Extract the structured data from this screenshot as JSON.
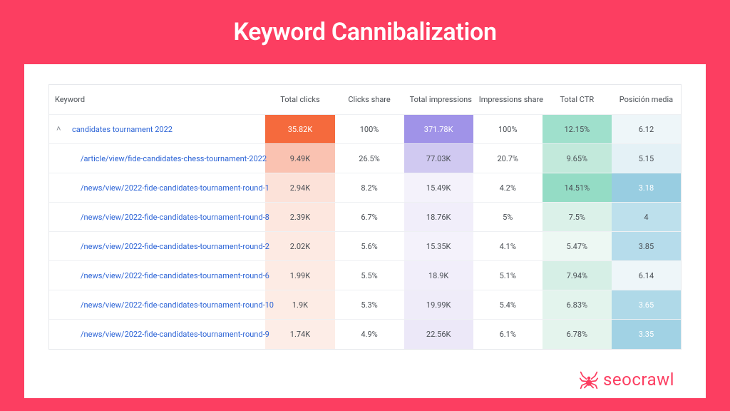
{
  "title": "Keyword Cannibalization",
  "brand": "seocrawl",
  "colors": {
    "accent": "#fc3e61",
    "link": "#2b63d6",
    "border": "#e6e8ec",
    "row_border": "#eef0f3",
    "text": "#4a4f55"
  },
  "table": {
    "columns": [
      {
        "key": "keyword",
        "label": "Keyword",
        "type": "text"
      },
      {
        "key": "clicks",
        "label": "Total clicks",
        "type": "heat"
      },
      {
        "key": "clicks_share",
        "label": "Clicks share",
        "type": "plain"
      },
      {
        "key": "impressions",
        "label": "Total impressions",
        "type": "heat"
      },
      {
        "key": "impressions_share",
        "label": "Impressions share",
        "type": "plain"
      },
      {
        "key": "ctr",
        "label": "Total CTR",
        "type": "heat"
      },
      {
        "key": "position",
        "label": "Posición media",
        "type": "heat"
      }
    ],
    "heat": {
      "clicks": {
        "max_bg": "#f56a3d",
        "max_fg": "#ffffff",
        "mid_bg": "#f9bfae",
        "min_bg": "#fdeee9"
      },
      "impressions": {
        "max_bg": "#a093e8",
        "max_fg": "#ffffff",
        "mid_bg": "#d6d1f3",
        "min_bg": "#f2f0fb"
      },
      "ctr": {
        "max_bg": "#8adbc2",
        "max_fg": "#4a4f55",
        "mid_bg": "#c9ece1",
        "min_bg": "#eef8f4"
      },
      "position": {
        "max_bg": "#8ac7de",
        "max_fg": "#ffffff",
        "mid_bg": "#c8e4ee",
        "min_bg": "#eef6f9"
      }
    },
    "rows": [
      {
        "level": 0,
        "keyword": "candidates tournament 2022",
        "cells": {
          "clicks": {
            "text": "35.82K",
            "bg": "#f56a3d",
            "fg": "#ffffff"
          },
          "clicks_share": {
            "text": "100%"
          },
          "impressions": {
            "text": "371.78K",
            "bg": "#a093e8",
            "fg": "#ffffff"
          },
          "impressions_share": {
            "text": "100%"
          },
          "ctr": {
            "text": "12.15%",
            "bg": "#9fe0cc"
          },
          "position": {
            "text": "6.12",
            "bg": "#eef6f9"
          }
        }
      },
      {
        "level": 1,
        "keyword": "/article/view/fide-candidates-chess-tournament-2022",
        "cells": {
          "clicks": {
            "text": "9.49K",
            "bg": "#fac2b1"
          },
          "clicks_share": {
            "text": "26.5%"
          },
          "impressions": {
            "text": "77.03K",
            "bg": "#d0c9f1"
          },
          "impressions_share": {
            "text": "20.7%"
          },
          "ctr": {
            "text": "9.65%",
            "bg": "#c2e9db"
          },
          "position": {
            "text": "5.15",
            "bg": "#e4f1f6"
          }
        }
      },
      {
        "level": 1,
        "keyword": "/news/view/2022-fide-candidates-tournament-round-1",
        "cells": {
          "clicks": {
            "text": "2.94K",
            "bg": "#fce2d9"
          },
          "clicks_share": {
            "text": "8.2%"
          },
          "impressions": {
            "text": "15.49K",
            "bg": "#f4f2fb"
          },
          "impressions_share": {
            "text": "4.2%"
          },
          "ctr": {
            "text": "14.51%",
            "bg": "#94dcc5"
          },
          "position": {
            "text": "3.18",
            "bg": "#98cde1",
            "fg": "#ffffff"
          }
        }
      },
      {
        "level": 1,
        "keyword": "/news/view/2022-fide-candidates-tournament-round-8",
        "cells": {
          "clicks": {
            "text": "2.39K",
            "bg": "#fde7df"
          },
          "clicks_share": {
            "text": "6.7%"
          },
          "impressions": {
            "text": "18.76K",
            "bg": "#f1eefa"
          },
          "impressions_share": {
            "text": "5%"
          },
          "ctr": {
            "text": "7.5%",
            "bg": "#dbf1e9"
          },
          "position": {
            "text": "4",
            "bg": "#bde0ec"
          }
        }
      },
      {
        "level": 1,
        "keyword": "/news/view/2022-fide-candidates-tournament-round-2",
        "cells": {
          "clicks": {
            "text": "2.02K",
            "bg": "#fdeae3"
          },
          "clicks_share": {
            "text": "5.6%"
          },
          "impressions": {
            "text": "15.35K",
            "bg": "#f4f2fb"
          },
          "impressions_share": {
            "text": "4.1%"
          },
          "ctr": {
            "text": "5.47%",
            "bg": "#edf8f3"
          },
          "position": {
            "text": "3.85",
            "bg": "#b6dceb"
          }
        }
      },
      {
        "level": 1,
        "keyword": "/news/view/2022-fide-candidates-tournament-round-6",
        "cells": {
          "clicks": {
            "text": "1.99K",
            "bg": "#fdebe4"
          },
          "clicks_share": {
            "text": "5.5%"
          },
          "impressions": {
            "text": "18.9K",
            "bg": "#f1eefa"
          },
          "impressions_share": {
            "text": "5.1%"
          },
          "ctr": {
            "text": "7.94%",
            "bg": "#d6efe6"
          },
          "position": {
            "text": "6.14",
            "bg": "#eef6f9"
          }
        }
      },
      {
        "level": 1,
        "keyword": "/news/view/2022-fide-candidates-tournament-round-10",
        "cells": {
          "clicks": {
            "text": "1.9K",
            "bg": "#fdece5"
          },
          "clicks_share": {
            "text": "5.3%"
          },
          "impressions": {
            "text": "19.99K",
            "bg": "#efecf9"
          },
          "impressions_share": {
            "text": "5.4%"
          },
          "ctr": {
            "text": "6.83%",
            "bg": "#e3f4ed"
          },
          "position": {
            "text": "3.65",
            "bg": "#afd9e8",
            "fg": "#ffffff"
          }
        }
      },
      {
        "level": 1,
        "keyword": "/news/view/2022-fide-candidates-tournament-round-9",
        "cells": {
          "clicks": {
            "text": "1.74K",
            "bg": "#fdede7"
          },
          "clicks_share": {
            "text": "4.9%"
          },
          "impressions": {
            "text": "22.56K",
            "bg": "#ece8f8"
          },
          "impressions_share": {
            "text": "6.1%"
          },
          "ctr": {
            "text": "6.78%",
            "bg": "#e4f4ed"
          },
          "position": {
            "text": "3.35",
            "bg": "#a1d2e4",
            "fg": "#ffffff"
          }
        }
      }
    ]
  }
}
